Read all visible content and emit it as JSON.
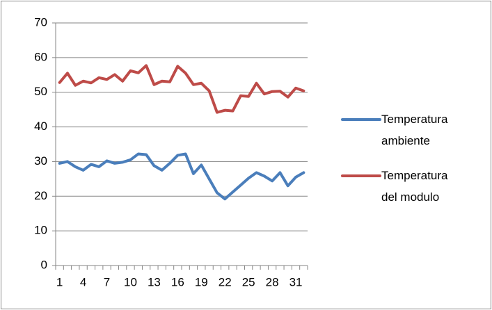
{
  "chart_data": {
    "type": "line",
    "categories": [
      "1",
      null,
      null,
      "4",
      null,
      null,
      "7",
      null,
      null,
      "10",
      null,
      null,
      "13",
      null,
      null,
      "16",
      null,
      null,
      "19",
      null,
      null,
      "22",
      null,
      null,
      "25",
      null,
      null,
      "28",
      null,
      null,
      "31",
      null
    ],
    "series": [
      {
        "name": "Temperatura ambiente",
        "color": "#4a7ebb",
        "values": [
          29.5,
          30,
          28.5,
          27.5,
          29.2,
          28.5,
          30.2,
          29.5,
          29.8,
          30.5,
          32.2,
          32,
          28.8,
          27.5,
          29.5,
          31.8,
          32.2,
          26.5,
          29,
          25,
          21,
          19.2,
          21.2,
          23.2,
          25.2,
          26.8,
          25.8,
          24.4,
          26.8,
          23,
          25.5,
          26.8
        ]
      },
      {
        "name": "Temperatura del modulo",
        "color": "#be4b48",
        "values": [
          52.8,
          55.5,
          52,
          53.2,
          52.7,
          54.2,
          53.7,
          55.1,
          53.2,
          56.2,
          55.6,
          57.7,
          52.2,
          53.2,
          53,
          57.5,
          55.5,
          52.2,
          52.6,
          50.4,
          44.2,
          44.8,
          44.6,
          49,
          48.8,
          52.6,
          49.5,
          50.2,
          50.3,
          48.6,
          51.2,
          50.4
        ]
      }
    ],
    "ylim": [
      0,
      70
    ],
    "yticks": [
      0,
      10,
      20,
      30,
      40,
      50,
      60,
      70
    ],
    "grid": true,
    "legend": "right"
  }
}
